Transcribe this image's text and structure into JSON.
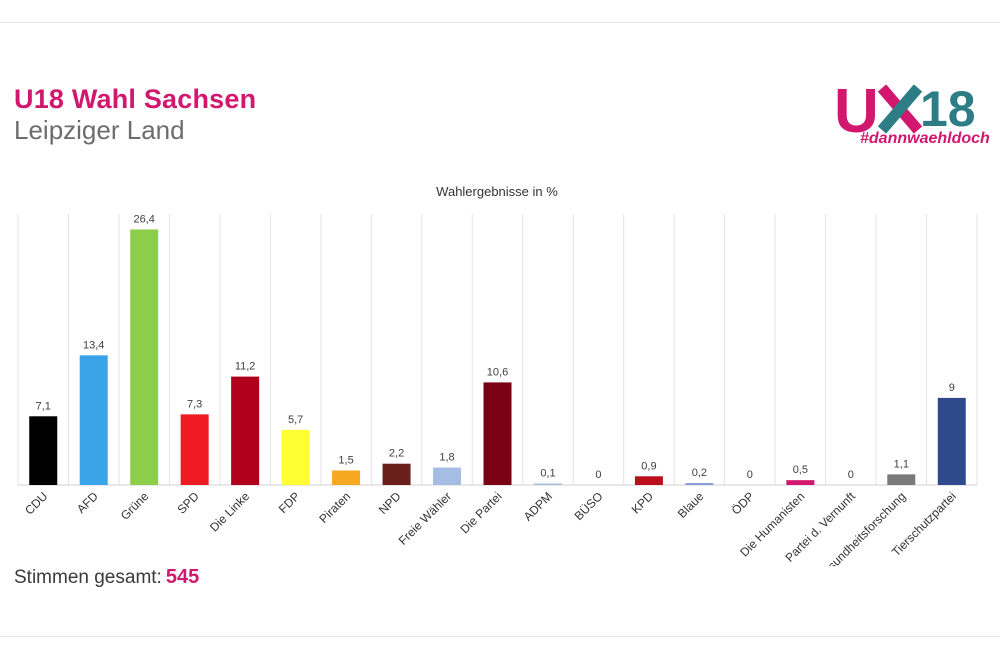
{
  "header": {
    "title": "U18 Wahl Sachsen",
    "subtitle": "Leipziger Land"
  },
  "logo": {
    "wordmark_u": "U",
    "wordmark_18": "18",
    "hashtag": "#dannwaehldoch",
    "color_pink": "#d2176f",
    "color_teal": "#2c7d86"
  },
  "footer": {
    "votes_label": "Stimmen gesamt:",
    "votes_value": "545"
  },
  "chart_data": {
    "type": "bar",
    "title": "Wahlergebnisse in %",
    "xlabel": "",
    "ylabel": "",
    "ylim": [
      0,
      28
    ],
    "grid": "vertical",
    "categories": [
      "CDU",
      "AFD",
      "Grüne",
      "SPD",
      "Die Linke",
      "FDP",
      "Piraten",
      "NPD",
      "Freie Wähler",
      "Die Partei",
      "ADPM",
      "BÜSO",
      "KPD",
      "Blaue",
      "ÖDP",
      "Die Humanisten",
      "Partei d. Vernunft",
      "Gesundheitsforschung",
      "Tierschutzpartei"
    ],
    "values": [
      7.1,
      13.4,
      26.4,
      7.3,
      11.2,
      5.7,
      1.5,
      2.2,
      1.8,
      10.6,
      0.1,
      0,
      0.9,
      0.2,
      0,
      0.5,
      0,
      1.1,
      9
    ],
    "value_labels": [
      "7,1",
      "13,4",
      "26,4",
      "7,3",
      "11,2",
      "5,7",
      "1,5",
      "2,2",
      "1,8",
      "10,6",
      "0,1",
      "0",
      "0,9",
      "0,2",
      "0",
      "0,5",
      "0",
      "1,1",
      "9"
    ],
    "colors": [
      "#000000",
      "#3aa4e8",
      "#8ccd4a",
      "#ee1b24",
      "#b0001c",
      "#ffff33",
      "#f6a821",
      "#6a1f1d",
      "#a6bde3",
      "#7a0014",
      "#a6bde3",
      "#999999",
      "#bb0f1e",
      "#8a9ad8",
      "#999999",
      "#d2176f",
      "#999999",
      "#7a7a7a",
      "#2e4a8c"
    ]
  }
}
